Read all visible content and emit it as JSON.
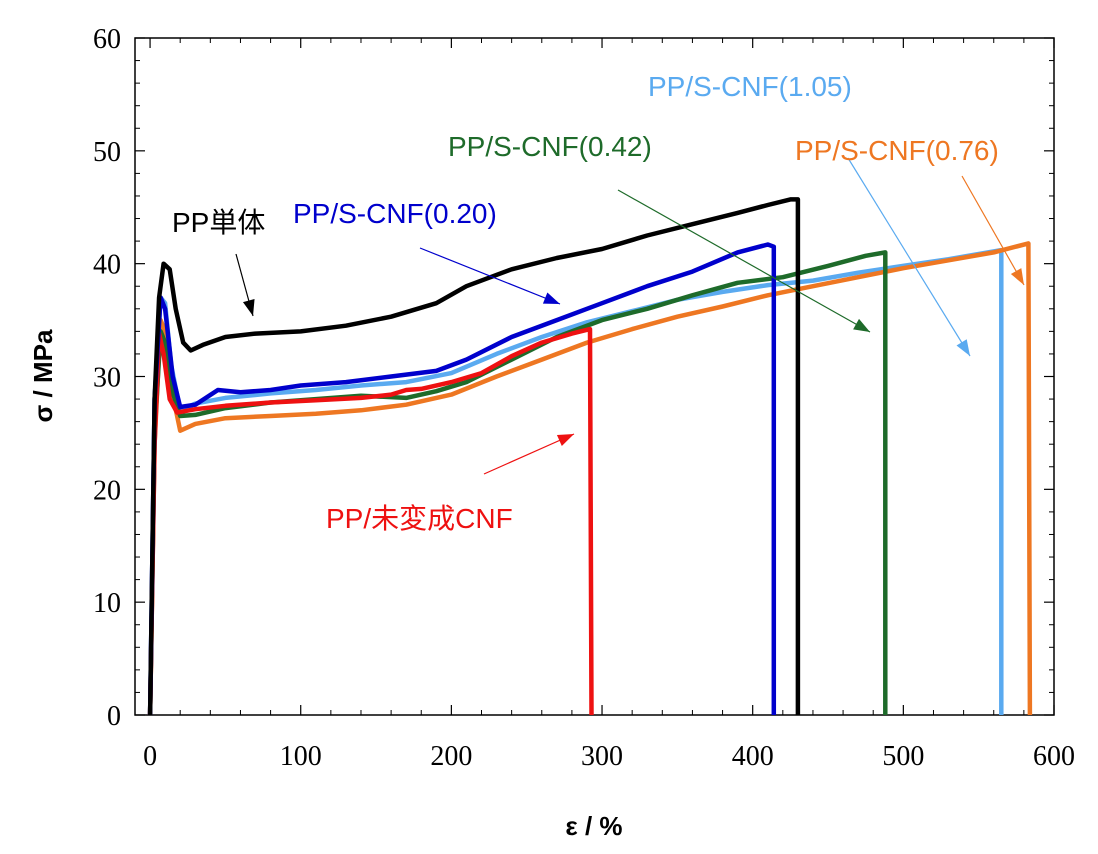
{
  "chart_data": {
    "type": "line",
    "xlabel": "ε / %",
    "ylabel": "σ / MPa",
    "xlim": [
      -10,
      600
    ],
    "ylim": [
      0,
      60
    ],
    "x_ticks": [
      "0",
      "100",
      "200",
      "300",
      "400",
      "500",
      "600"
    ],
    "y_ticks": [
      "0",
      "10",
      "20",
      "30",
      "40",
      "50",
      "60"
    ],
    "grid": false,
    "series": [
      {
        "name": "PP単体",
        "color": "#000000",
        "points": [
          [
            0,
            0
          ],
          [
            3,
            28
          ],
          [
            6,
            37
          ],
          [
            9,
            40
          ],
          [
            13,
            39.5
          ],
          [
            17,
            36
          ],
          [
            22,
            33
          ],
          [
            27,
            32.3
          ],
          [
            35,
            32.8
          ],
          [
            50,
            33.5
          ],
          [
            70,
            33.8
          ],
          [
            100,
            34
          ],
          [
            130,
            34.5
          ],
          [
            160,
            35.3
          ],
          [
            190,
            36.5
          ],
          [
            210,
            38
          ],
          [
            240,
            39.5
          ],
          [
            270,
            40.5
          ],
          [
            300,
            41.3
          ],
          [
            330,
            42.5
          ],
          [
            360,
            43.5
          ],
          [
            390,
            44.5
          ],
          [
            410,
            45.2
          ],
          [
            425,
            45.7
          ],
          [
            430,
            45.7
          ],
          [
            430,
            0
          ]
        ]
      },
      {
        "name": "PP/S-CNF(0.20)",
        "color": "#0000cc",
        "points": [
          [
            0,
            0
          ],
          [
            3,
            28
          ],
          [
            7,
            37
          ],
          [
            10,
            36
          ],
          [
            15,
            30
          ],
          [
            20,
            27.3
          ],
          [
            30,
            27.5
          ],
          [
            45,
            28.8
          ],
          [
            60,
            28.6
          ],
          [
            80,
            28.8
          ],
          [
            100,
            29.2
          ],
          [
            130,
            29.5
          ],
          [
            160,
            30
          ],
          [
            190,
            30.5
          ],
          [
            210,
            31.5
          ],
          [
            240,
            33.5
          ],
          [
            270,
            35
          ],
          [
            300,
            36.5
          ],
          [
            330,
            38
          ],
          [
            360,
            39.3
          ],
          [
            390,
            41
          ],
          [
            410,
            41.7
          ],
          [
            414,
            41.5
          ],
          [
            414,
            0
          ]
        ]
      },
      {
        "name": "PP/S-CNF(0.42)",
        "color": "#1e6b2a",
        "points": [
          [
            0,
            0
          ],
          [
            3,
            25
          ],
          [
            7,
            34
          ],
          [
            10,
            33
          ],
          [
            14,
            29
          ],
          [
            20,
            26.5
          ],
          [
            30,
            26.6
          ],
          [
            50,
            27.2
          ],
          [
            80,
            27.7
          ],
          [
            110,
            28
          ],
          [
            140,
            28.3
          ],
          [
            170,
            28.1
          ],
          [
            190,
            28.7
          ],
          [
            210,
            29.5
          ],
          [
            240,
            31.5
          ],
          [
            270,
            33.5
          ],
          [
            300,
            35
          ],
          [
            330,
            36
          ],
          [
            360,
            37.2
          ],
          [
            390,
            38.3
          ],
          [
            420,
            38.8
          ],
          [
            450,
            39.8
          ],
          [
            475,
            40.7
          ],
          [
            488,
            41
          ],
          [
            488,
            0
          ]
        ]
      },
      {
        "name": "PP/S-CNF(0.76)",
        "color": "#ee7722",
        "points": [
          [
            0,
            0
          ],
          [
            3,
            24
          ],
          [
            7,
            35
          ],
          [
            10,
            34
          ],
          [
            14,
            29
          ],
          [
            20,
            25.2
          ],
          [
            30,
            25.8
          ],
          [
            50,
            26.3
          ],
          [
            80,
            26.5
          ],
          [
            110,
            26.7
          ],
          [
            140,
            27
          ],
          [
            170,
            27.5
          ],
          [
            200,
            28.4
          ],
          [
            230,
            30
          ],
          [
            260,
            31.5
          ],
          [
            290,
            33
          ],
          [
            320,
            34.2
          ],
          [
            350,
            35.3
          ],
          [
            380,
            36.2
          ],
          [
            410,
            37.2
          ],
          [
            440,
            38
          ],
          [
            470,
            38.8
          ],
          [
            500,
            39.6
          ],
          [
            530,
            40.3
          ],
          [
            560,
            41
          ],
          [
            583,
            41.8
          ],
          [
            584,
            0
          ]
        ]
      },
      {
        "name": "PP/S-CNF(1.05)",
        "color": "#5aaaf0",
        "points": [
          [
            0,
            0
          ],
          [
            3,
            28
          ],
          [
            7,
            37
          ],
          [
            10,
            36.5
          ],
          [
            14,
            31
          ],
          [
            20,
            27
          ],
          [
            30,
            27.6
          ],
          [
            50,
            28.1
          ],
          [
            80,
            28.5
          ],
          [
            110,
            28.8
          ],
          [
            140,
            29.2
          ],
          [
            170,
            29.5
          ],
          [
            200,
            30.3
          ],
          [
            230,
            32
          ],
          [
            260,
            33.5
          ],
          [
            290,
            34.8
          ],
          [
            320,
            35.8
          ],
          [
            350,
            36.8
          ],
          [
            380,
            37.5
          ],
          [
            410,
            38.1
          ],
          [
            440,
            38.5
          ],
          [
            470,
            39.2
          ],
          [
            500,
            39.8
          ],
          [
            530,
            40.4
          ],
          [
            565,
            41.2
          ],
          [
            565,
            0
          ]
        ]
      },
      {
        "name": "PP/未変成CNF",
        "color": "#ee1111",
        "points": [
          [
            0,
            0
          ],
          [
            3,
            24
          ],
          [
            6,
            33.8
          ],
          [
            9,
            32
          ],
          [
            13,
            28
          ],
          [
            18,
            26.8
          ],
          [
            30,
            27.1
          ],
          [
            50,
            27.4
          ],
          [
            80,
            27.7
          ],
          [
            110,
            27.9
          ],
          [
            140,
            28.1
          ],
          [
            160,
            28.4
          ],
          [
            170,
            28.8
          ],
          [
            180,
            28.9
          ],
          [
            200,
            29.5
          ],
          [
            220,
            30.3
          ],
          [
            240,
            31.8
          ],
          [
            260,
            33
          ],
          [
            280,
            33.8
          ],
          [
            292,
            34.2
          ],
          [
            293,
            0
          ]
        ]
      }
    ],
    "annotations": [
      {
        "text": "PP単体",
        "color": "#000000"
      },
      {
        "text": "PP/S-CNF(0.20)",
        "color": "#0000cc"
      },
      {
        "text": "PP/S-CNF(0.42)",
        "color": "#1e6b2a"
      },
      {
        "text": "PP/S-CNF(0.76)",
        "color": "#ee7722"
      },
      {
        "text": "PP/S-CNF(1.05)",
        "color": "#5aaaf0"
      },
      {
        "text": "PP/未変成CNF",
        "color": "#ee1111"
      }
    ]
  }
}
